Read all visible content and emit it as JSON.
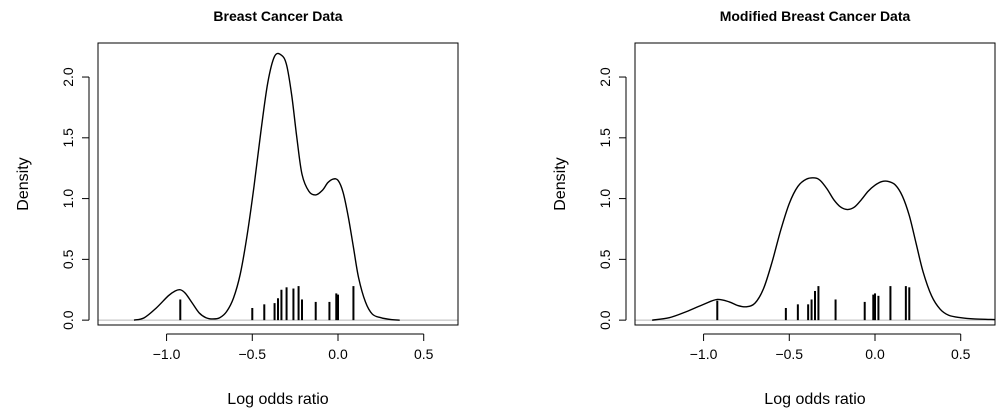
{
  "chart_data": [
    {
      "type": "line",
      "title": "Breast Cancer Data",
      "xlabel": "Log odds ratio",
      "ylabel": "Density",
      "xlim": [
        -1.4,
        0.7
      ],
      "ylim": [
        -0.04,
        2.28
      ],
      "xticks": [
        -1.0,
        -0.5,
        0.0,
        0.5
      ],
      "xtick_labels": [
        "−1.0",
        "−0.5",
        "0.0",
        "0.5"
      ],
      "yticks": [
        0.0,
        0.5,
        1.0,
        1.5,
        2.0
      ],
      "ytick_labels": [
        "0.0",
        "0.5",
        "1.0",
        "1.5",
        "2.0"
      ],
      "grid": false,
      "density_curve": {
        "x": [
          -1.19,
          -1.13,
          -1.06,
          -0.99,
          -0.95,
          -0.92,
          -0.89,
          -0.85,
          -0.81,
          -0.77,
          -0.73,
          -0.69,
          -0.65,
          -0.61,
          -0.57,
          -0.53,
          -0.49,
          -0.45,
          -0.41,
          -0.37,
          -0.33,
          -0.3,
          -0.27,
          -0.24,
          -0.21,
          -0.17,
          -0.13,
          -0.09,
          -0.06,
          -0.03,
          0.0,
          0.03,
          0.06,
          0.09,
          0.12,
          0.16,
          0.2,
          0.25,
          0.31,
          0.36
        ],
        "y": [
          0.0,
          0.02,
          0.1,
          0.2,
          0.24,
          0.25,
          0.22,
          0.14,
          0.06,
          0.02,
          0.01,
          0.02,
          0.07,
          0.18,
          0.38,
          0.7,
          1.1,
          1.55,
          1.95,
          2.17,
          2.18,
          2.1,
          1.85,
          1.5,
          1.2,
          1.06,
          1.03,
          1.07,
          1.13,
          1.16,
          1.15,
          1.05,
          0.85,
          0.6,
          0.35,
          0.15,
          0.05,
          0.02,
          0.005,
          0.0
        ]
      },
      "rug": {
        "x": [
          -0.92,
          -0.5,
          -0.43,
          -0.37,
          -0.35,
          -0.33,
          -0.3,
          -0.26,
          -0.23,
          -0.21,
          -0.13,
          -0.05,
          -0.01,
          0.0,
          0.09
        ],
        "heights": [
          0.17,
          0.1,
          0.13,
          0.14,
          0.18,
          0.25,
          0.27,
          0.26,
          0.28,
          0.17,
          0.15,
          0.15,
          0.22,
          0.21,
          0.28
        ]
      }
    },
    {
      "type": "line",
      "title": "Modified Breast Cancer Data",
      "xlabel": "Log odds ratio",
      "ylabel": "Density",
      "xlim": [
        -1.4,
        0.7
      ],
      "ylim": [
        -0.04,
        2.28
      ],
      "xticks": [
        -1.0,
        -0.5,
        0.0,
        0.5
      ],
      "xtick_labels": [
        "−1.0",
        "−0.5",
        "0.0",
        "0.5"
      ],
      "yticks": [
        0.0,
        0.5,
        1.0,
        1.5,
        2.0
      ],
      "ytick_labels": [
        "0.0",
        "0.5",
        "1.0",
        "1.5",
        "2.0"
      ],
      "grid": false,
      "density_curve": {
        "x": [
          -1.3,
          -1.2,
          -1.1,
          -1.0,
          -0.92,
          -0.85,
          -0.8,
          -0.75,
          -0.7,
          -0.65,
          -0.6,
          -0.55,
          -0.5,
          -0.45,
          -0.4,
          -0.35,
          -0.32,
          -0.28,
          -0.24,
          -0.2,
          -0.16,
          -0.12,
          -0.08,
          -0.04,
          0.0,
          0.04,
          0.08,
          0.12,
          0.16,
          0.2,
          0.24,
          0.28,
          0.33,
          0.38,
          0.43,
          0.5,
          0.58,
          0.7
        ],
        "y": [
          0.0,
          0.02,
          0.07,
          0.13,
          0.17,
          0.15,
          0.12,
          0.11,
          0.14,
          0.26,
          0.48,
          0.74,
          0.96,
          1.1,
          1.16,
          1.17,
          1.15,
          1.08,
          0.99,
          0.93,
          0.91,
          0.93,
          0.99,
          1.06,
          1.11,
          1.14,
          1.14,
          1.11,
          1.02,
          0.86,
          0.63,
          0.4,
          0.2,
          0.09,
          0.04,
          0.02,
          0.01,
          0.005
        ]
      },
      "rug": {
        "x": [
          -0.92,
          -0.52,
          -0.45,
          -0.39,
          -0.37,
          -0.35,
          -0.33,
          -0.23,
          -0.06,
          -0.01,
          0.0,
          0.02,
          0.09,
          0.18,
          0.2
        ],
        "heights": [
          0.16,
          0.1,
          0.13,
          0.13,
          0.17,
          0.24,
          0.28,
          0.17,
          0.15,
          0.21,
          0.22,
          0.2,
          0.28,
          0.28,
          0.27
        ]
      }
    }
  ]
}
